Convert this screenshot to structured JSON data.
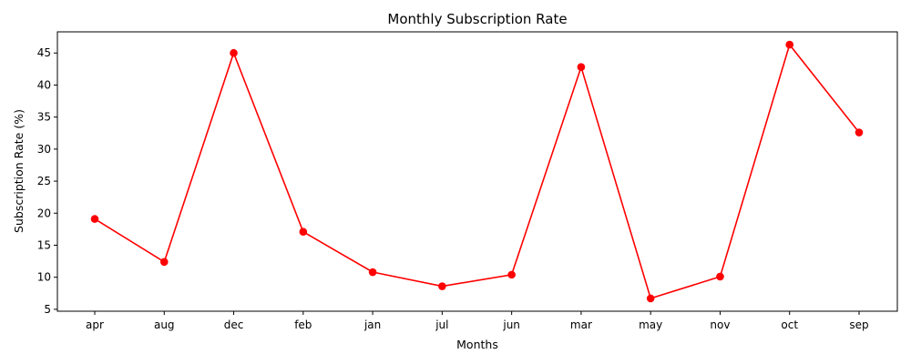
{
  "chart_data": {
    "type": "line",
    "title": "Monthly Subscription Rate",
    "xlabel": "Months",
    "ylabel": "Subscription Rate (%)",
    "categories": [
      "apr",
      "aug",
      "dec",
      "feb",
      "jan",
      "jul",
      "jun",
      "mar",
      "may",
      "nov",
      "oct",
      "sep"
    ],
    "series": [
      {
        "values": [
          19.1,
          12.4,
          45.0,
          17.1,
          10.8,
          8.6,
          10.4,
          42.8,
          6.7,
          10.1,
          46.3,
          32.6
        ],
        "color": "#ff0000",
        "marker": "circle"
      }
    ],
    "yticks": [
      5,
      10,
      15,
      20,
      25,
      30,
      35,
      40,
      45
    ],
    "ylim": [
      4.7,
      48.3
    ],
    "grid": false,
    "legend": "none"
  }
}
